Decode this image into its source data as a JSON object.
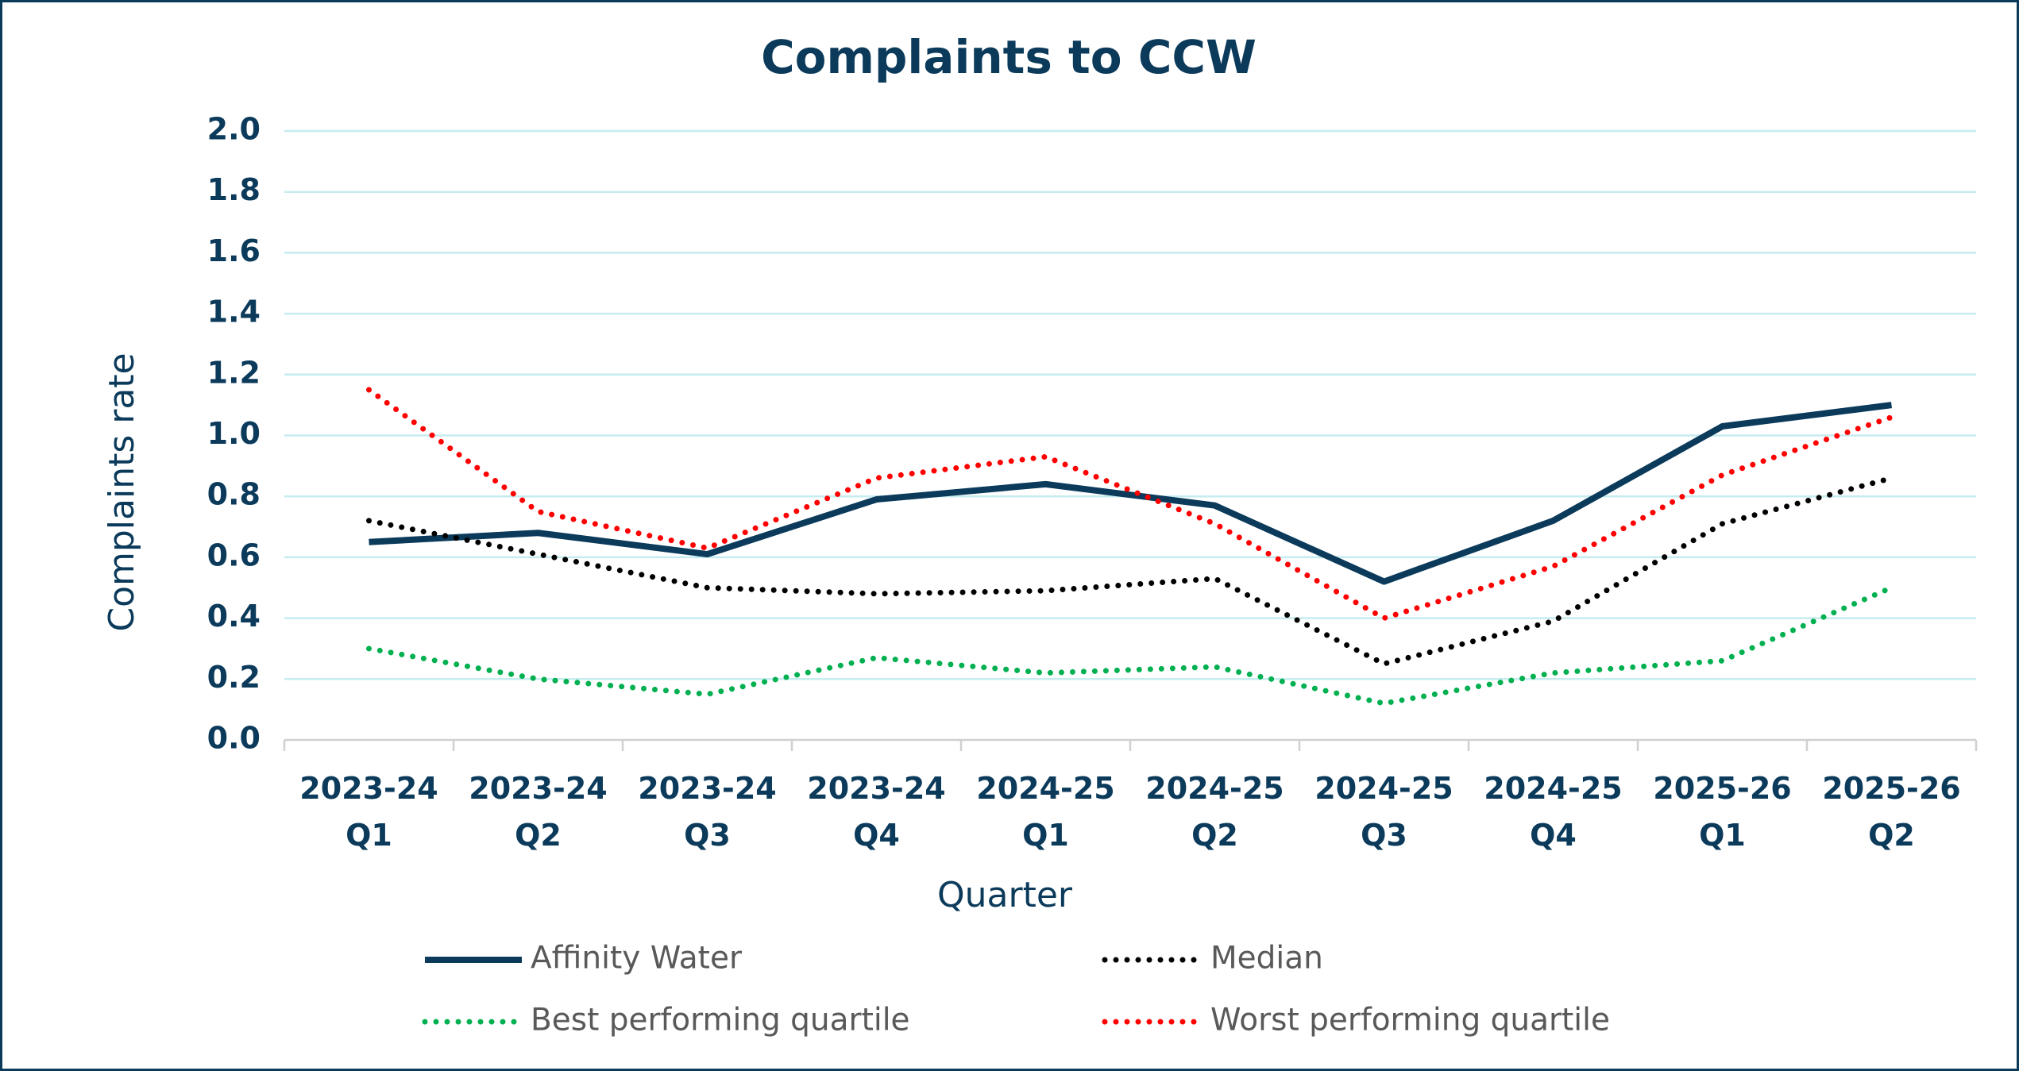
{
  "chart_data": {
    "type": "line",
    "title": "Complaints to CCW",
    "x_label": "Quarter",
    "y_label": "Complaints rate",
    "categories": [
      "2023-24 Q1",
      "2023-24 Q2",
      "2023-24 Q3",
      "2023-24 Q4",
      "2024-25 Q1",
      "2024-25 Q2",
      "2024-25 Q3",
      "2024-25 Q4",
      "2025-26 Q1",
      "2025-26 Q2"
    ],
    "series": [
      {
        "name": "Affinity Water",
        "color": "#0b3a5b",
        "style": "solid",
        "values": [
          0.65,
          0.68,
          0.61,
          0.79,
          0.84,
          0.77,
          0.52,
          0.72,
          1.03,
          1.1
        ]
      },
      {
        "name": "Median",
        "color": "#000000",
        "style": "dotted",
        "values": [
          0.72,
          0.61,
          0.5,
          0.48,
          0.49,
          0.53,
          0.25,
          0.39,
          0.71,
          0.86
        ]
      },
      {
        "name": "Best performing quartile",
        "color": "#00b050",
        "style": "dotted",
        "values": [
          0.3,
          0.2,
          0.15,
          0.27,
          0.22,
          0.24,
          0.12,
          0.22,
          0.26,
          0.5
        ]
      },
      {
        "name": "Worst performing quartile",
        "color": "#ff0000",
        "style": "dotted",
        "values": [
          1.15,
          0.75,
          0.63,
          0.86,
          0.93,
          0.71,
          0.4,
          0.57,
          0.87,
          1.06
        ]
      }
    ],
    "ylim": [
      0,
      2
    ],
    "yticks": [
      {
        "value": 0,
        "label": "0.0"
      },
      {
        "value": 0.2,
        "label": "0.2"
      },
      {
        "value": 0.4,
        "label": "0.4"
      },
      {
        "value": 0.6,
        "label": "0.6"
      },
      {
        "value": 0.8,
        "label": "0.8"
      },
      {
        "value": 1,
        "label": "1.0"
      },
      {
        "value": 1.2,
        "label": "1.2"
      },
      {
        "value": 1.4,
        "label": "1.4"
      },
      {
        "value": 1.6,
        "label": "1.6"
      },
      {
        "value": 1.8,
        "label": "1.8"
      },
      {
        "value": 2,
        "label": "2.0"
      }
    ],
    "grid": true,
    "legend": "bottom"
  }
}
